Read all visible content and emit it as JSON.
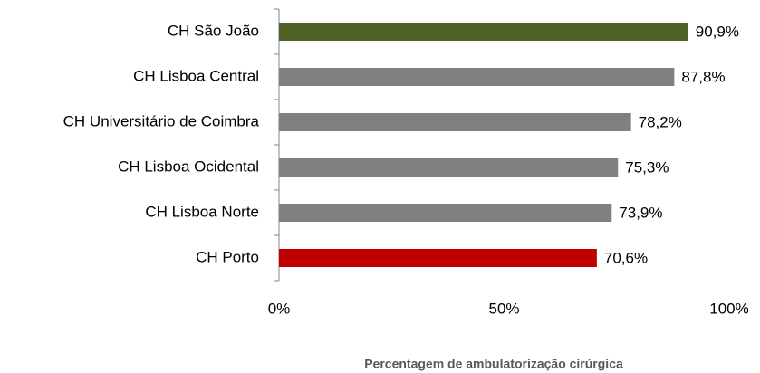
{
  "chart_data": {
    "type": "bar",
    "orientation": "horizontal",
    "x_label": "Percentagem de ambulatorização cirúrgica",
    "categories": [
      "CH São João",
      "CH Lisboa Central",
      "CH Universitário de Coimbra",
      "CH Lisboa Ocidental",
      "CH Lisboa Norte",
      "CH Porto"
    ],
    "values": [
      90.9,
      87.8,
      78.2,
      75.3,
      73.9,
      70.6
    ],
    "value_labels": [
      "90,9%",
      "87,8%",
      "78,2%",
      "75,3%",
      "73,9%",
      "70,6%"
    ],
    "colors": [
      "#4f6228",
      "#808080",
      "#808080",
      "#808080",
      "#808080",
      "#c00000"
    ],
    "xlim": [
      0,
      100
    ],
    "xticks": [
      {
        "value": 0,
        "label": "0%"
      },
      {
        "value": 50,
        "label": "50%"
      },
      {
        "value": 100,
        "label": "100%"
      }
    ],
    "grid": false
  }
}
